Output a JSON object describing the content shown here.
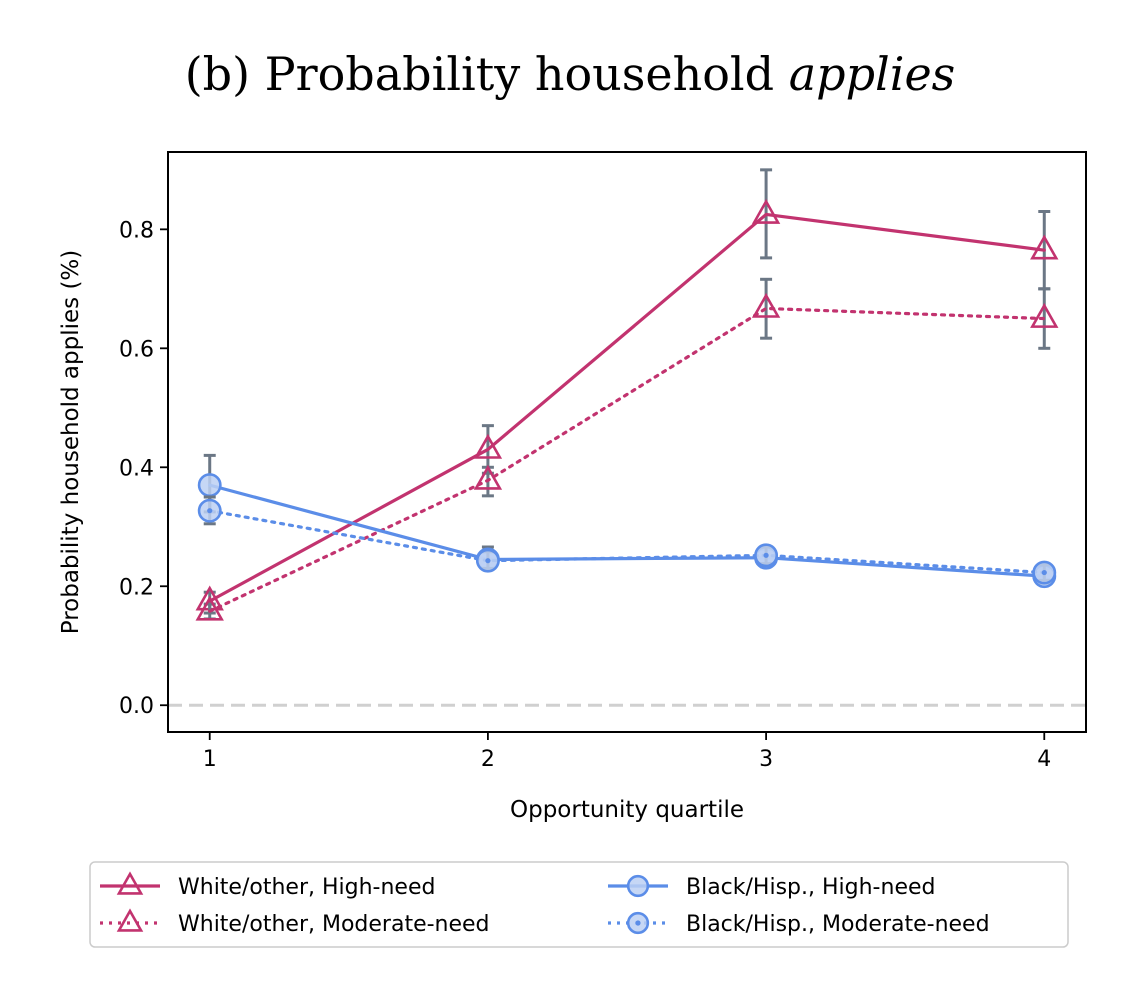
{
  "chart_data": {
    "type": "line",
    "title_prefix": "(b) Probability household ",
    "title_emph": "applies",
    "xlabel": "Opportunity quartile",
    "ylabel": "Probability household applies (%)",
    "x": [
      1,
      2,
      3,
      4
    ],
    "x_tick_labels": [
      "1",
      "2",
      "3",
      "4"
    ],
    "y_ticks": [
      0.0,
      0.2,
      0.4,
      0.6,
      0.8
    ],
    "y_tick_labels": [
      "0.0",
      "0.2",
      "0.4",
      "0.6",
      "0.8"
    ],
    "xlim": [
      0.85,
      4.15
    ],
    "ylim": [
      -0.045,
      0.93
    ],
    "reference_line_y": 0.0,
    "legend_position": "bottom",
    "series": [
      {
        "name": "White/other, High-need",
        "label": "White/other, High-need",
        "color": "#c2336f",
        "line_style": "solid",
        "marker": "triangle",
        "values": [
          0.175,
          0.43,
          0.825,
          0.765
        ],
        "error_low": [
          0.155,
          0.39,
          0.752,
          0.7
        ],
        "error_high": [
          0.19,
          0.47,
          0.9,
          0.83
        ]
      },
      {
        "name": "White/other, Moderate-need",
        "label": "White/other, Moderate-need",
        "color": "#c2336f",
        "line_style": "dotted",
        "marker": "triangle",
        "values": [
          0.158,
          0.378,
          0.667,
          0.65
        ],
        "error_low": [
          0.145,
          0.352,
          0.617,
          0.6
        ],
        "error_high": [
          0.17,
          0.4,
          0.716,
          0.7
        ]
      },
      {
        "name": "Black/Hisp., High-need",
        "label": "Black/Hisp., High-need",
        "color": "#5b8de8",
        "line_style": "solid",
        "marker": "circle",
        "values": [
          0.37,
          0.245,
          0.248,
          0.217
        ],
        "error_low": [
          0.325,
          0.228,
          0.233,
          0.205
        ],
        "error_high": [
          0.42,
          0.266,
          0.262,
          0.23
        ]
      },
      {
        "name": "Black/Hisp., Moderate-need",
        "label": "Black/Hisp., Moderate-need",
        "color": "#5b8de8",
        "line_style": "dotted",
        "marker": "circle-dot",
        "values": [
          0.327,
          0.243,
          0.252,
          0.223
        ],
        "error_low": [
          0.305,
          0.23,
          0.238,
          0.21
        ],
        "error_high": [
          0.35,
          0.258,
          0.266,
          0.236
        ]
      }
    ]
  },
  "colors": {
    "errorbar": "#6b7785",
    "reference_line": "#d0d0d0",
    "circle_fill": "#bcd0f3"
  }
}
